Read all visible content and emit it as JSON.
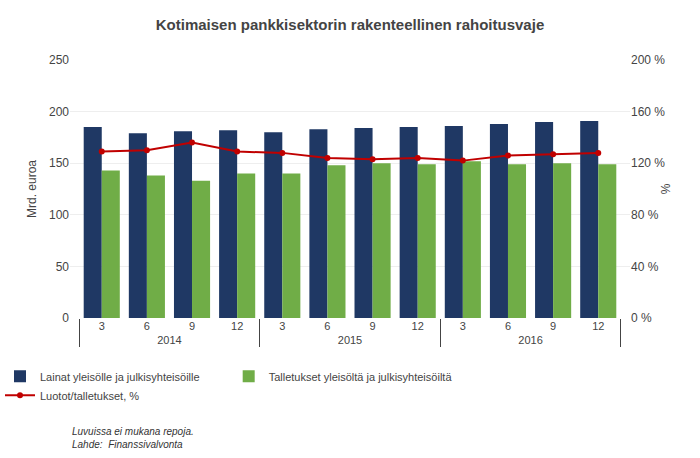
{
  "chart_data": {
    "type": "bar",
    "title": "Kotimaisen pankkisektorin rakenteellinen rahoitusvaje",
    "ylabel": "Mrd. euroa",
    "y2label": "%",
    "annotations": [
      "Luvuissa ei mukana repoja.",
      "Lahde:  Finanssivalvonta"
    ],
    "categories": [
      "3",
      "6",
      "9",
      "12",
      "3",
      "6",
      "9",
      "12",
      "3",
      "6",
      "9",
      "12"
    ],
    "category_groups": [
      "2014",
      "2014",
      "2014",
      "2014",
      "2015",
      "2015",
      "2015",
      "2015",
      "2016",
      "2016",
      "2016",
      "2016"
    ],
    "series": [
      {
        "name": "Lainat yleisölle ja julkisyhteisöille",
        "type": "bar",
        "color": "#1F3864",
        "values": [
          185,
          179,
          181,
          182,
          180,
          183,
          184,
          185,
          186,
          188,
          190,
          191
        ]
      },
      {
        "name": "Talletukset yleisöltä ja julkisyhteisöiltä",
        "type": "bar",
        "color": "#70AD47",
        "values": [
          143,
          138,
          133,
          140,
          140,
          148,
          150,
          149,
          152,
          149,
          150,
          149
        ]
      },
      {
        "name": "Luotot/talletukset, %",
        "type": "line",
        "axis": "y2",
        "color": "#C00000",
        "marker": "circle",
        "values": [
          129,
          130,
          136,
          129,
          128,
          124,
          123,
          124,
          122,
          126,
          127,
          128
        ]
      }
    ],
    "ylim": [
      0,
      250
    ],
    "yticks": [
      0,
      50,
      100,
      150,
      200,
      250
    ],
    "y2lim": [
      0,
      200
    ],
    "y2ticks": [
      {
        "value": 0,
        "label": "0 %"
      },
      {
        "value": 40,
        "label": "40 %"
      },
      {
        "value": 80,
        "label": "80 %"
      },
      {
        "value": 120,
        "label": "120 %"
      },
      {
        "value": 160,
        "label": "160 %"
      },
      {
        "value": 200,
        "label": "200 %"
      }
    ],
    "grid": true,
    "legend": "bottom"
  }
}
